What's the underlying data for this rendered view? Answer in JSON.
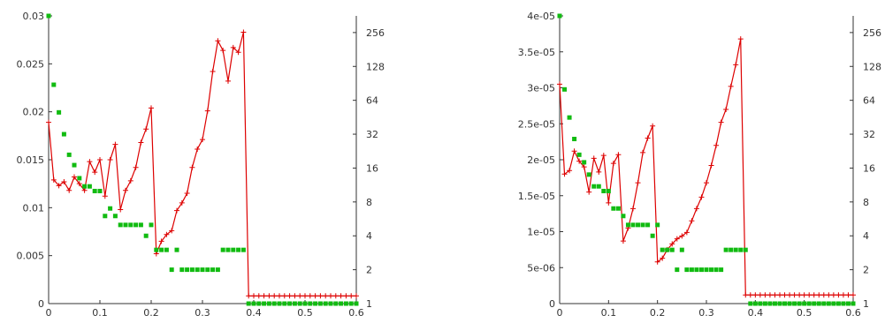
{
  "colors": {
    "red_series": "#dd0000",
    "green_series": "#11bb11",
    "axis": "#333333"
  },
  "chart_data": [
    {
      "type": "line",
      "title": "",
      "xlabel": "",
      "ylabel": "",
      "xlim": [
        0,
        0.6
      ],
      "ylim": [
        0,
        0.03
      ],
      "y2_scale": "log2",
      "y2lim": [
        1,
        360
      ],
      "grid": false,
      "x_ticks": [
        "0",
        "0.1",
        "0.2",
        "0.3",
        "0.4",
        "0.5",
        "0.6"
      ],
      "y_ticks": [
        "0",
        "0.005",
        "0.01",
        "0.015",
        "0.02",
        "0.025",
        "0.03"
      ],
      "y2_ticks": [
        "1",
        "2",
        "4",
        "8",
        "16",
        "32",
        "64",
        "128",
        "256"
      ],
      "series": [
        {
          "axis": "y",
          "style": "line-cross",
          "x": [
            0,
            0.01,
            0.02,
            0.03,
            0.04,
            0.05,
            0.06,
            0.07,
            0.08,
            0.09,
            0.1,
            0.11,
            0.12,
            0.13,
            0.14,
            0.15,
            0.16,
            0.17,
            0.18,
            0.19,
            0.2,
            0.21,
            0.22,
            0.23,
            0.24,
            0.25,
            0.26,
            0.27,
            0.28,
            0.29,
            0.3,
            0.31,
            0.32,
            0.33,
            0.34,
            0.35,
            0.36,
            0.37,
            0.38,
            0.39,
            0.4,
            0.41,
            0.42,
            0.43,
            0.44,
            0.45,
            0.46,
            0.47,
            0.48,
            0.49,
            0.5,
            0.51,
            0.52,
            0.53,
            0.54,
            0.55,
            0.56,
            0.57,
            0.58,
            0.59,
            0.6
          ],
          "y": [
            0.0189,
            0.0129,
            0.0123,
            0.0127,
            0.0118,
            0.0132,
            0.0125,
            0.0118,
            0.0148,
            0.0137,
            0.015,
            0.0112,
            0.015,
            0.0166,
            0.0098,
            0.0118,
            0.0128,
            0.0142,
            0.0168,
            0.0182,
            0.0204,
            0.0052,
            0.0065,
            0.0072,
            0.0076,
            0.0097,
            0.0105,
            0.0115,
            0.0142,
            0.0161,
            0.0171,
            0.0201,
            0.0242,
            0.0274,
            0.0264,
            0.0232,
            0.0267,
            0.0262,
            0.0283,
            0.0008,
            0.0008,
            0.0008,
            0.0008,
            0.0008,
            0.0008,
            0.0008,
            0.0008,
            0.0008,
            0.0008,
            0.0008,
            0.0008,
            0.0008,
            0.0008,
            0.0008,
            0.0008,
            0.0008,
            0.0008,
            0.0008,
            0.0008,
            0.0008,
            0.0008
          ]
        },
        {
          "axis": "y2",
          "style": "square-points",
          "x": [
            0,
            0.01,
            0.02,
            0.03,
            0.04,
            0.05,
            0.06,
            0.07,
            0.08,
            0.09,
            0.1,
            0.11,
            0.12,
            0.13,
            0.14,
            0.15,
            0.16,
            0.17,
            0.18,
            0.19,
            0.2,
            0.21,
            0.22,
            0.23,
            0.24,
            0.25,
            0.26,
            0.27,
            0.28,
            0.29,
            0.3,
            0.31,
            0.32,
            0.33,
            0.34,
            0.35,
            0.36,
            0.37,
            0.38,
            0.39,
            0.4,
            0.41,
            0.42,
            0.43,
            0.44,
            0.45,
            0.46,
            0.47,
            0.48,
            0.49,
            0.5,
            0.51,
            0.52,
            0.53,
            0.54,
            0.55,
            0.56,
            0.57,
            0.58,
            0.59,
            0.6
          ],
          "y": [
            360,
            88,
            50,
            32,
            21,
            17,
            13,
            11,
            11,
            10,
            10,
            6,
            7,
            6,
            5,
            5,
            5,
            5,
            5,
            4,
            5,
            3,
            3,
            3,
            2,
            3,
            2,
            2,
            2,
            2,
            2,
            2,
            2,
            2,
            3,
            3,
            3,
            3,
            3,
            1,
            1,
            1,
            1,
            1,
            1,
            1,
            1,
            1,
            1,
            1,
            1,
            1,
            1,
            1,
            1,
            1,
            1,
            1,
            1,
            1,
            1
          ]
        }
      ]
    },
    {
      "type": "line",
      "title": "",
      "xlabel": "",
      "ylabel": "",
      "xlim": [
        0,
        0.6
      ],
      "ylim": [
        0,
        4e-05
      ],
      "y2_scale": "log2",
      "y2lim": [
        1,
        360
      ],
      "grid": false,
      "x_ticks": [
        "0",
        "0.1",
        "0.2",
        "0.3",
        "0.4",
        "0.5",
        "0.6"
      ],
      "y_ticks": [
        "0",
        "5e-06",
        "1e-05",
        "1.5e-05",
        "2e-05",
        "2.5e-05",
        "3e-05",
        "3.5e-05",
        "4e-05"
      ],
      "y2_ticks": [
        "1",
        "2",
        "4",
        "8",
        "16",
        "32",
        "64",
        "128",
        "256"
      ],
      "series": [
        {
          "axis": "y",
          "style": "line-cross",
          "x": [
            0,
            0.01,
            0.02,
            0.03,
            0.04,
            0.05,
            0.06,
            0.07,
            0.08,
            0.09,
            0.1,
            0.11,
            0.12,
            0.13,
            0.14,
            0.15,
            0.16,
            0.17,
            0.18,
            0.19,
            0.2,
            0.21,
            0.22,
            0.23,
            0.24,
            0.25,
            0.26,
            0.27,
            0.28,
            0.29,
            0.3,
            0.31,
            0.32,
            0.33,
            0.34,
            0.35,
            0.36,
            0.37,
            0.38,
            0.39,
            0.4,
            0.41,
            0.42,
            0.43,
            0.44,
            0.45,
            0.46,
            0.47,
            0.48,
            0.49,
            0.5,
            0.51,
            0.52,
            0.53,
            0.54,
            0.55,
            0.56,
            0.57,
            0.58,
            0.59,
            0.6
          ],
          "y": [
            3.05e-05,
            1.8e-05,
            1.85e-05,
            2.12e-05,
            1.98e-05,
            1.9e-05,
            1.55e-05,
            2.02e-05,
            1.83e-05,
            2.06e-05,
            1.4e-05,
            1.95e-05,
            2.07e-05,
            8.7e-06,
            1.05e-05,
            1.32e-05,
            1.68e-05,
            2.1e-05,
            2.3e-05,
            2.47e-05,
            5.8e-06,
            6.3e-06,
            7.5e-06,
            8.3e-06,
            9e-06,
            9.4e-06,
            9.9e-06,
            1.15e-05,
            1.32e-05,
            1.48e-05,
            1.68e-05,
            1.92e-05,
            2.2e-05,
            2.52e-05,
            2.7e-05,
            3.02e-05,
            3.32e-05,
            3.68e-05,
            1.2e-06,
            1.2e-06,
            1.2e-06,
            1.2e-06,
            1.2e-06,
            1.2e-06,
            1.2e-06,
            1.2e-06,
            1.2e-06,
            1.2e-06,
            1.2e-06,
            1.2e-06,
            1.2e-06,
            1.2e-06,
            1.2e-06,
            1.2e-06,
            1.2e-06,
            1.2e-06,
            1.2e-06,
            1.2e-06,
            1.2e-06,
            1.2e-06,
            1.2e-06
          ]
        },
        {
          "axis": "y2",
          "style": "square-points",
          "x": [
            0,
            0.01,
            0.02,
            0.03,
            0.04,
            0.05,
            0.06,
            0.07,
            0.08,
            0.09,
            0.1,
            0.11,
            0.12,
            0.13,
            0.14,
            0.15,
            0.16,
            0.17,
            0.18,
            0.19,
            0.2,
            0.21,
            0.22,
            0.23,
            0.24,
            0.25,
            0.26,
            0.27,
            0.28,
            0.29,
            0.3,
            0.31,
            0.32,
            0.33,
            0.34,
            0.35,
            0.36,
            0.37,
            0.38,
            0.39,
            0.4,
            0.41,
            0.42,
            0.43,
            0.44,
            0.45,
            0.46,
            0.47,
            0.48,
            0.49,
            0.5,
            0.51,
            0.52,
            0.53,
            0.54,
            0.55,
            0.56,
            0.57,
            0.58,
            0.59,
            0.6
          ],
          "y": [
            360,
            80,
            45,
            29,
            21,
            18,
            14,
            11,
            11,
            10,
            10,
            7,
            7,
            6,
            5,
            5,
            5,
            5,
            5,
            4,
            5,
            3,
            3,
            3,
            2,
            3,
            2,
            2,
            2,
            2,
            2,
            2,
            2,
            2,
            3,
            3,
            3,
            3,
            3,
            1,
            1,
            1,
            1,
            1,
            1,
            1,
            1,
            1,
            1,
            1,
            1,
            1,
            1,
            1,
            1,
            1,
            1,
            1,
            1,
            1,
            1
          ]
        }
      ]
    }
  ]
}
